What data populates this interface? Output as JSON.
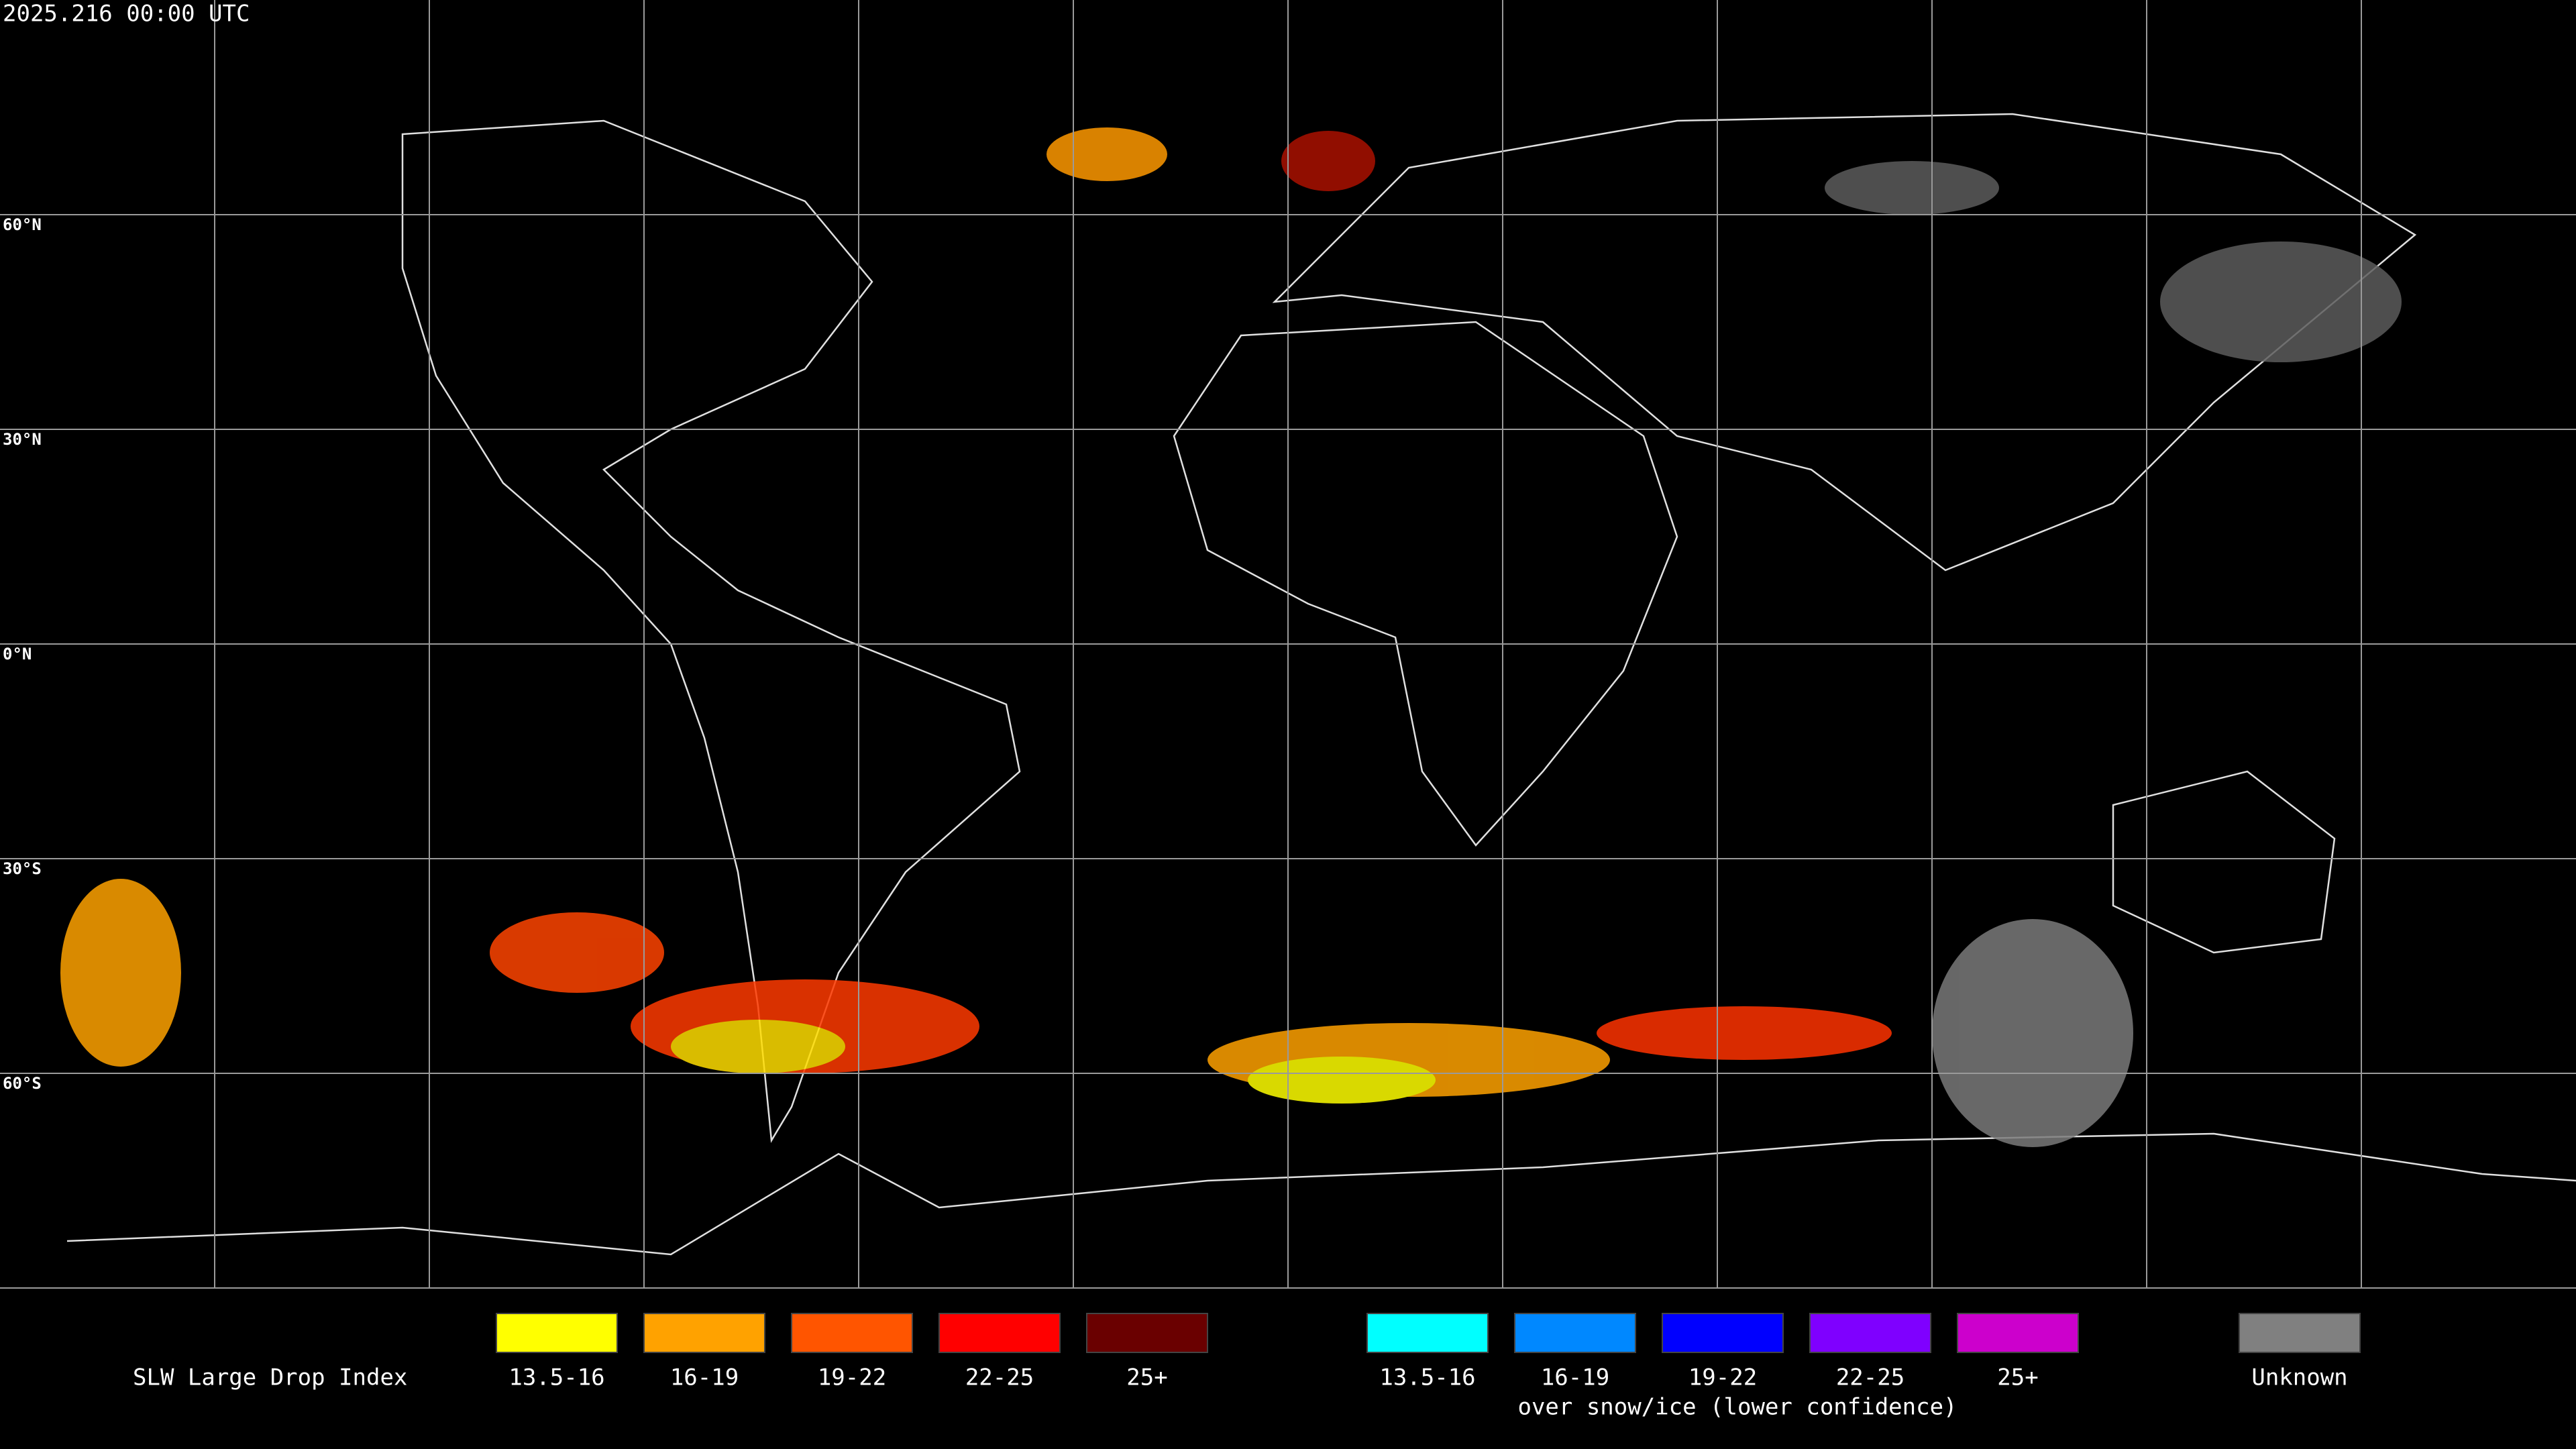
{
  "timestamp": "2025.216 00:00 UTC",
  "latitude_labels": [
    "60°N",
    "30°N",
    "0°N",
    "30°S",
    "60°S"
  ],
  "legend": {
    "title": "SLW Large Drop Index",
    "items": [
      {
        "label": "13.5-16",
        "color": "#ffff00"
      },
      {
        "label": "16-19",
        "color": "#ffa200"
      },
      {
        "label": "19-22",
        "color": "#ff5500"
      },
      {
        "label": "22-25",
        "color": "#ff0000"
      },
      {
        "label": "25+",
        "color": "#6a0000"
      }
    ],
    "snow_items": [
      {
        "label": "13.5-16",
        "color": "#00ffff"
      },
      {
        "label": "16-19",
        "color": "#0088ff"
      },
      {
        "label": "19-22",
        "color": "#0000ff"
      },
      {
        "label": "22-25",
        "color": "#7f00ff"
      },
      {
        "label": "25+",
        "color": "#cc00cc"
      }
    ],
    "snow_note": "over snow/ice (lower confidence)",
    "unknown": {
      "label": "Unknown",
      "color": "#808080"
    }
  }
}
